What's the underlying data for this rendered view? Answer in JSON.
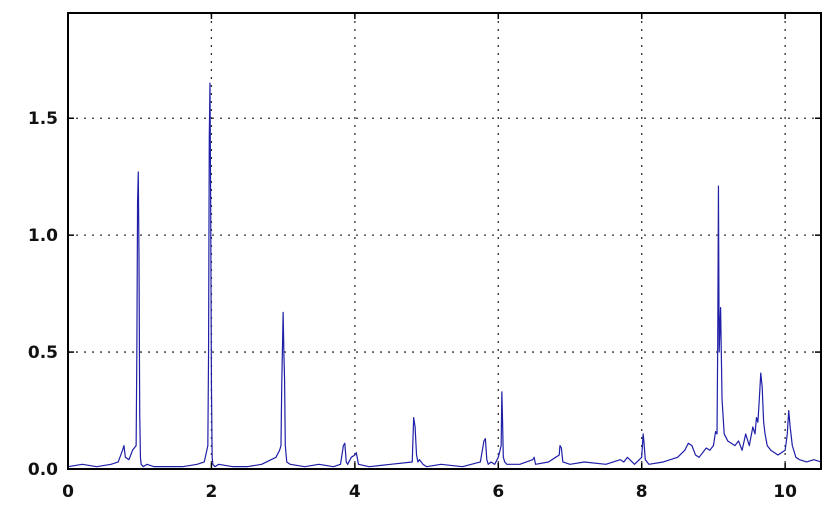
{
  "chart_data": {
    "type": "line",
    "title": "",
    "xlabel": "",
    "ylabel": "",
    "xlim": [
      0,
      10.5
    ],
    "ylim": [
      0,
      1.95
    ],
    "grid": true,
    "color": "#1f1fa8",
    "x_ticks": [
      {
        "value": 0,
        "label": "0"
      },
      {
        "value": 2,
        "label": "2"
      },
      {
        "value": 4,
        "label": "4"
      },
      {
        "value": 6,
        "label": "6"
      },
      {
        "value": 8,
        "label": "8"
      },
      {
        "value": 10,
        "label": "10"
      }
    ],
    "y_ticks": [
      {
        "value": 0.0,
        "label": "0.0"
      },
      {
        "value": 0.5,
        "label": "0.5"
      },
      {
        "value": 1.0,
        "label": "1.0"
      },
      {
        "value": 1.5,
        "label": "1.5"
      }
    ],
    "series": [
      {
        "x": [
          0.0,
          0.2,
          0.4,
          0.6,
          0.7,
          0.76,
          0.78,
          0.8,
          0.85,
          0.9,
          0.95,
          0.96,
          0.97,
          0.98,
          0.99,
          1.0,
          1.01,
          1.02,
          1.05,
          1.1,
          1.2,
          1.4,
          1.6,
          1.8,
          1.9,
          1.95,
          1.96,
          1.97,
          1.98,
          1.99,
          2.0,
          2.01,
          2.02,
          2.05,
          2.1,
          2.3,
          2.5,
          2.7,
          2.9,
          2.95,
          2.97,
          2.98,
          3.0,
          3.01,
          3.02,
          3.03,
          3.05,
          3.1,
          3.3,
          3.5,
          3.7,
          3.8,
          3.84,
          3.86,
          3.88,
          3.9,
          3.95,
          4.0,
          4.02,
          4.05,
          4.2,
          4.5,
          4.8,
          4.82,
          4.84,
          4.86,
          4.88,
          4.9,
          4.95,
          5.0,
          5.2,
          5.5,
          5.75,
          5.8,
          5.82,
          5.84,
          5.86,
          5.9,
          5.95,
          6.0,
          6.04,
          6.05,
          6.06,
          6.07,
          6.09,
          6.12,
          6.3,
          6.48,
          6.5,
          6.52,
          6.7,
          6.8,
          6.85,
          6.86,
          6.88,
          6.9,
          7.0,
          7.2,
          7.5,
          7.7,
          7.75,
          7.8,
          7.9,
          8.0,
          8.02,
          8.03,
          8.05,
          8.1,
          8.3,
          8.5,
          8.6,
          8.65,
          8.7,
          8.75,
          8.8,
          8.9,
          8.95,
          9.0,
          9.03,
          9.05,
          9.06,
          9.07,
          9.08,
          9.1,
          9.12,
          9.15,
          9.2,
          9.3,
          9.35,
          9.4,
          9.45,
          9.5,
          9.55,
          9.58,
          9.6,
          9.62,
          9.64,
          9.66,
          9.68,
          9.7,
          9.72,
          9.75,
          9.8,
          9.9,
          10.0,
          10.03,
          10.05,
          10.07,
          10.1,
          10.15,
          10.2,
          10.3,
          10.4,
          10.5
        ],
        "values": [
          0.01,
          0.02,
          0.01,
          0.02,
          0.03,
          0.08,
          0.1,
          0.05,
          0.04,
          0.08,
          0.1,
          0.5,
          1.14,
          1.27,
          0.9,
          0.24,
          0.05,
          0.02,
          0.01,
          0.02,
          0.01,
          0.01,
          0.01,
          0.02,
          0.03,
          0.1,
          0.5,
          1.42,
          1.65,
          1.1,
          0.36,
          0.05,
          0.02,
          0.01,
          0.02,
          0.01,
          0.01,
          0.02,
          0.05,
          0.08,
          0.1,
          0.35,
          0.67,
          0.5,
          0.38,
          0.1,
          0.03,
          0.02,
          0.01,
          0.02,
          0.01,
          0.02,
          0.1,
          0.11,
          0.03,
          0.02,
          0.05,
          0.06,
          0.07,
          0.02,
          0.01,
          0.02,
          0.03,
          0.22,
          0.18,
          0.06,
          0.03,
          0.04,
          0.02,
          0.01,
          0.02,
          0.01,
          0.03,
          0.12,
          0.13,
          0.04,
          0.02,
          0.03,
          0.02,
          0.05,
          0.1,
          0.33,
          0.2,
          0.05,
          0.03,
          0.02,
          0.02,
          0.04,
          0.05,
          0.02,
          0.03,
          0.05,
          0.06,
          0.1,
          0.09,
          0.03,
          0.02,
          0.03,
          0.02,
          0.04,
          0.03,
          0.05,
          0.02,
          0.05,
          0.15,
          0.12,
          0.04,
          0.02,
          0.03,
          0.05,
          0.08,
          0.11,
          0.1,
          0.06,
          0.05,
          0.09,
          0.08,
          0.1,
          0.16,
          0.15,
          0.55,
          1.21,
          0.5,
          0.69,
          0.3,
          0.15,
          0.12,
          0.1,
          0.12,
          0.08,
          0.15,
          0.1,
          0.18,
          0.15,
          0.22,
          0.2,
          0.3,
          0.41,
          0.35,
          0.2,
          0.15,
          0.1,
          0.08,
          0.06,
          0.08,
          0.15,
          0.25,
          0.18,
          0.1,
          0.05,
          0.04,
          0.03,
          0.04,
          0.03
        ]
      }
    ]
  }
}
